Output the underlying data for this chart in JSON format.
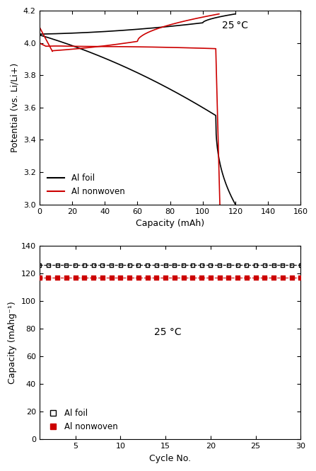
{
  "top_chart": {
    "title": "25 °C",
    "xlabel": "Capacity (mAh)",
    "ylabel": "Potential (vs. Li/Li+)",
    "xlim": [
      0,
      160
    ],
    "ylim": [
      3.0,
      4.2
    ],
    "yticks": [
      3.0,
      3.2,
      3.4,
      3.6,
      3.8,
      4.0,
      4.2
    ],
    "xticks": [
      0,
      20,
      40,
      60,
      80,
      100,
      120,
      140,
      160
    ],
    "al_foil_color": "#000000",
    "al_nonwoven_color": "#cc0000",
    "legend_labels": [
      "Al foil",
      "Al nonwoven"
    ]
  },
  "bottom_chart": {
    "title": "25 °C",
    "xlabel": "Cycle No.",
    "ylabel": "Capacity (mAhg⁻¹)",
    "xlim": [
      1,
      30
    ],
    "ylim": [
      0,
      140
    ],
    "yticks": [
      0,
      20,
      40,
      60,
      80,
      100,
      120,
      140
    ],
    "xticks": [
      5,
      10,
      15,
      20,
      25,
      30
    ],
    "al_foil_value": 126.0,
    "al_nonwoven_value": 117.0,
    "al_foil_color": "#000000",
    "al_nonwoven_color": "#cc0000",
    "legend_labels": [
      "Al foil",
      "Al nonwoven"
    ],
    "num_cycles": 30
  }
}
